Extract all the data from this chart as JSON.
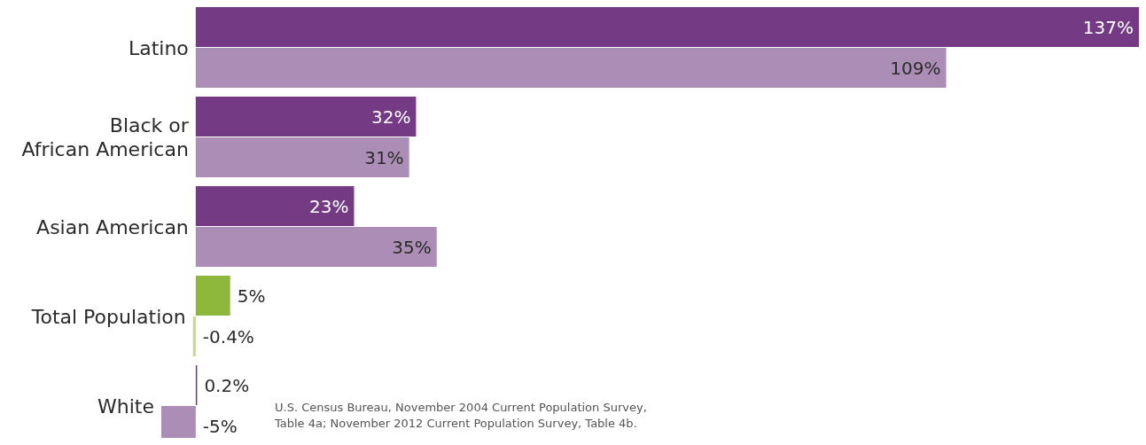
{
  "chart_data": {
    "type": "bar",
    "orientation": "horizontal",
    "categories": [
      "Latino",
      "Black or\nAfrican American",
      "Asian American",
      "Total Population",
      "White"
    ],
    "series": [
      {
        "colors": [
          "#743b84",
          "#743b84",
          "#743b84",
          "#8db83b",
          "#743b84"
        ],
        "values": [
          137,
          32,
          23,
          5,
          0.2
        ],
        "value_labels": [
          "137%",
          "32%",
          "23%",
          "5%",
          "0.2%"
        ]
      },
      {
        "colors": [
          "#ab8db5",
          "#ab8db5",
          "#ab8db5",
          "#c5d89a",
          "#ab8db5"
        ],
        "values": [
          109,
          31,
          35,
          -0.4,
          -5
        ],
        "value_labels": [
          "109%",
          "31%",
          "35%",
          "-0.4%",
          "-5%"
        ]
      }
    ],
    "xlim": [
      -5,
      137
    ],
    "tick_labels": "y",
    "annotations": [
      "U.S. Census Bureau, November 2004 Current Population Survey,\nTable 4a; November 2012 Current Population Survey, Table 4b."
    ]
  }
}
